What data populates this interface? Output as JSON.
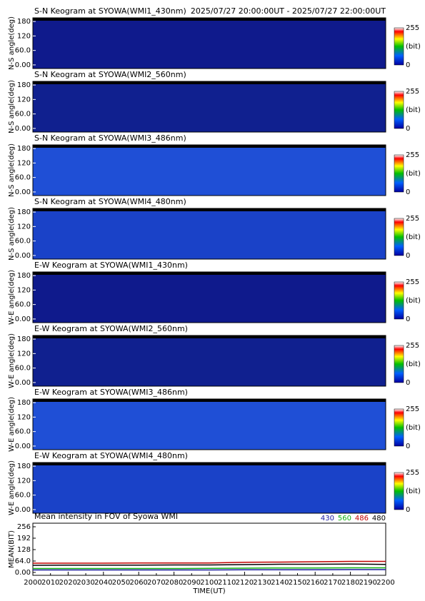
{
  "chart_data": [
    {
      "type": "keogram",
      "title": "S-N Keogram at SYOWA(WMI1_430nm)",
      "subtitle": "2025/07/27 20:00:00UT - 2025/07/27 22:00:00UT",
      "ylabel": "N-S angle(deg)",
      "ylim": [
        -15,
        195
      ],
      "yticks": [
        {
          "value": 0,
          "label": "0.00"
        },
        {
          "value": 60,
          "label": "60.0"
        },
        120,
        180
      ],
      "background": "#0f1a8c",
      "cbticks": [
        0,
        255
      ],
      "cblabel": "(bit)"
    },
    {
      "type": "keogram",
      "title": "S-N Keogram at SYOWA(WMI2_560nm)",
      "ylabel": "N-S angle(deg)",
      "ylim": [
        -15,
        195
      ],
      "yticks": [
        {
          "value": 0,
          "label": "0.00"
        },
        {
          "value": 60,
          "label": "60.0"
        },
        120,
        180
      ],
      "background": "#10208f",
      "cbticks": [
        0,
        255
      ],
      "cblabel": "(bit)"
    },
    {
      "type": "keogram",
      "title": "S-N Keogram at SYOWA(WMI3_486nm)",
      "ylabel": "N-S angle(deg)",
      "ylim": [
        -15,
        195
      ],
      "yticks": [
        {
          "value": 0,
          "label": "0.00"
        },
        {
          "value": 60,
          "label": "60.0"
        },
        120,
        180
      ],
      "background": "#1f4fd6",
      "cbticks": [
        0,
        255
      ],
      "cblabel": "(bit)"
    },
    {
      "type": "keogram",
      "title": "S-N Keogram at SYOWA(WMI4_480nm)",
      "ylabel": "N-S angle(deg)",
      "ylim": [
        -15,
        195
      ],
      "yticks": [
        {
          "value": 0,
          "label": "0.00"
        },
        {
          "value": 60,
          "label": "60.0"
        },
        120,
        180
      ],
      "background": "#1a42c8",
      "cbticks": [
        0,
        255
      ],
      "cblabel": "(bit)"
    },
    {
      "type": "keogram",
      "title": "E-W Keogram at SYOWA(WMI1_430nm)",
      "ylabel": "W-E angle(deg)",
      "ylim": [
        -15,
        195
      ],
      "yticks": [
        {
          "value": 0,
          "label": "0.00"
        },
        {
          "value": 60,
          "label": "60.0"
        },
        120,
        180
      ],
      "background": "#0f1a8c",
      "cbticks": [
        0,
        255
      ],
      "cblabel": "(bit)"
    },
    {
      "type": "keogram",
      "title": "E-W Keogram at SYOWA(WMI2_560nm)",
      "ylabel": "W-E angle(deg)",
      "ylim": [
        -15,
        195
      ],
      "yticks": [
        {
          "value": 0,
          "label": "0.00"
        },
        {
          "value": 60,
          "label": "60.0"
        },
        120,
        180
      ],
      "background": "#10208f",
      "cbticks": [
        0,
        255
      ],
      "cblabel": "(bit)"
    },
    {
      "type": "keogram",
      "title": "E-W Keogram at SYOWA(WMI3_486nm)",
      "ylabel": "W-E angle(deg)",
      "ylim": [
        -15,
        195
      ],
      "yticks": [
        {
          "value": 0,
          "label": "0.00"
        },
        {
          "value": 60,
          "label": "60.0"
        },
        120,
        180
      ],
      "background": "#1f4fd6",
      "cbticks": [
        0,
        255
      ],
      "cblabel": "(bit)"
    },
    {
      "type": "keogram",
      "title": "E-W Keogram at SYOWA(WMI4_480nm)",
      "ylabel": "W-E angle(deg)",
      "ylim": [
        -15,
        195
      ],
      "yticks": [
        {
          "value": 0,
          "label": "0.00"
        },
        {
          "value": 60,
          "label": "60.0"
        },
        120,
        180
      ],
      "background": "#1a42c8",
      "cbticks": [
        0,
        255
      ],
      "cblabel": "(bit)"
    },
    {
      "type": "line",
      "title": "Mean intensity in FOV of Syowa WMI",
      "ylabel": "MEAN(BIT)",
      "xlabel": "TIME(UT)",
      "x": [
        2000,
        2020,
        2040,
        2060,
        2080,
        2100,
        2120,
        2140,
        2160,
        2180,
        2200
      ],
      "series": [
        {
          "name": "430",
          "color": "#1a1aa0",
          "values": [
            14,
            14,
            14,
            14,
            14,
            14,
            15,
            15,
            15,
            16,
            16
          ]
        },
        {
          "name": "560",
          "color": "#10b010",
          "values": [
            22,
            22,
            22,
            22,
            22,
            23,
            24,
            25,
            25,
            26,
            26
          ]
        },
        {
          "name": "486",
          "color": "#c00000",
          "values": [
            52,
            52,
            52,
            53,
            53,
            53,
            57,
            58,
            60,
            62,
            62
          ]
        },
        {
          "name": "480",
          "color": "#000000",
          "values": [
            40,
            41,
            41,
            41,
            42,
            42,
            44,
            46,
            46,
            47,
            45
          ]
        }
      ],
      "xlim": [
        2000,
        2200
      ],
      "xticks": [
        2000,
        2010,
        2020,
        2030,
        2040,
        2050,
        2060,
        2070,
        2080,
        2090,
        2100,
        2110,
        2120,
        2130,
        2140,
        2150,
        2160,
        2170,
        2180,
        2190,
        2200
      ],
      "ylim": [
        -16,
        276
      ],
      "yticks": [
        {
          "value": 0,
          "label": "0.00"
        },
        {
          "value": 64,
          "label": "64.0"
        },
        128,
        192,
        256
      ]
    }
  ]
}
